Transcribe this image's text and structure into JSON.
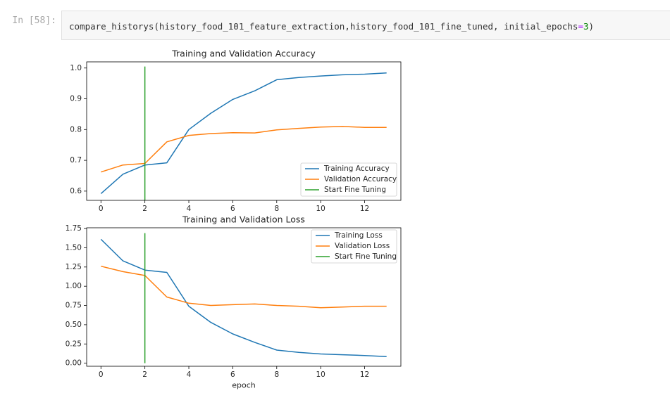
{
  "cell": {
    "prompt": "In [58]:",
    "code_prefix": "compare_historys(history_food_101_feature_extraction,history_food_101_fine_tuned, initial_epochs",
    "code_eq": "=",
    "code_num": "3",
    "code_suffix": ")"
  },
  "colors": {
    "training": "#1f77b4",
    "validation": "#ff7f0e",
    "fine_tuning": "#2ca02c"
  },
  "chart_data": [
    {
      "type": "line",
      "title": "Training and Validation Accuracy",
      "xlabel": "",
      "ylabel": "",
      "xlim": [
        -0.65,
        13.65
      ],
      "ylim": [
        0.57,
        1.02
      ],
      "xticks": [
        0,
        2,
        4,
        6,
        8,
        10,
        12
      ],
      "yticks": [
        0.6,
        0.7,
        0.8,
        0.9,
        1.0
      ],
      "ytick_labels": [
        "0.6",
        "0.7",
        "0.8",
        "0.9",
        "1.0"
      ],
      "legend_position": "lower-right",
      "x": [
        0,
        1,
        2,
        3,
        4,
        5,
        6,
        7,
        8,
        9,
        10,
        11,
        12,
        13
      ],
      "series": [
        {
          "name": "Training Accuracy",
          "color_key": "training",
          "values": [
            0.592,
            0.655,
            0.685,
            0.692,
            0.8,
            0.853,
            0.898,
            0.926,
            0.962,
            0.969,
            0.974,
            0.978,
            0.98,
            0.984
          ]
        },
        {
          "name": "Validation Accuracy",
          "color_key": "validation",
          "values": [
            0.662,
            0.685,
            0.69,
            0.76,
            0.781,
            0.787,
            0.79,
            0.789,
            0.799,
            0.804,
            0.808,
            0.81,
            0.807,
            0.807
          ]
        }
      ],
      "vline": {
        "name": "Start Fine Tuning",
        "color_key": "fine_tuning",
        "x": 2,
        "y": [
          0.57,
          1.005
        ]
      }
    },
    {
      "type": "line",
      "title": "Training and Validation Loss",
      "xlabel": "epoch",
      "ylabel": "",
      "xlim": [
        -0.65,
        13.65
      ],
      "ylim": [
        -0.04,
        1.76
      ],
      "xticks": [
        0,
        2,
        4,
        6,
        8,
        10,
        12
      ],
      "yticks": [
        0.0,
        0.25,
        0.5,
        0.75,
        1.0,
        1.25,
        1.5,
        1.75
      ],
      "ytick_labels": [
        "0.00",
        "0.25",
        "0.50",
        "0.75",
        "1.00",
        "1.25",
        "1.50",
        "1.75"
      ],
      "legend_position": "upper-right",
      "x": [
        0,
        1,
        2,
        3,
        4,
        5,
        6,
        7,
        8,
        9,
        10,
        11,
        12,
        13
      ],
      "series": [
        {
          "name": "Training Loss",
          "color_key": "training",
          "values": [
            1.61,
            1.33,
            1.21,
            1.18,
            0.74,
            0.53,
            0.38,
            0.27,
            0.17,
            0.14,
            0.12,
            0.11,
            0.1,
            0.085
          ]
        },
        {
          "name": "Validation Loss",
          "color_key": "validation",
          "values": [
            1.26,
            1.19,
            1.14,
            0.86,
            0.78,
            0.75,
            0.76,
            0.77,
            0.75,
            0.74,
            0.72,
            0.73,
            0.74,
            0.74
          ]
        }
      ],
      "vline": {
        "name": "Start Fine Tuning",
        "color_key": "fine_tuning",
        "x": 2,
        "y": [
          0.0,
          1.69
        ]
      }
    }
  ]
}
